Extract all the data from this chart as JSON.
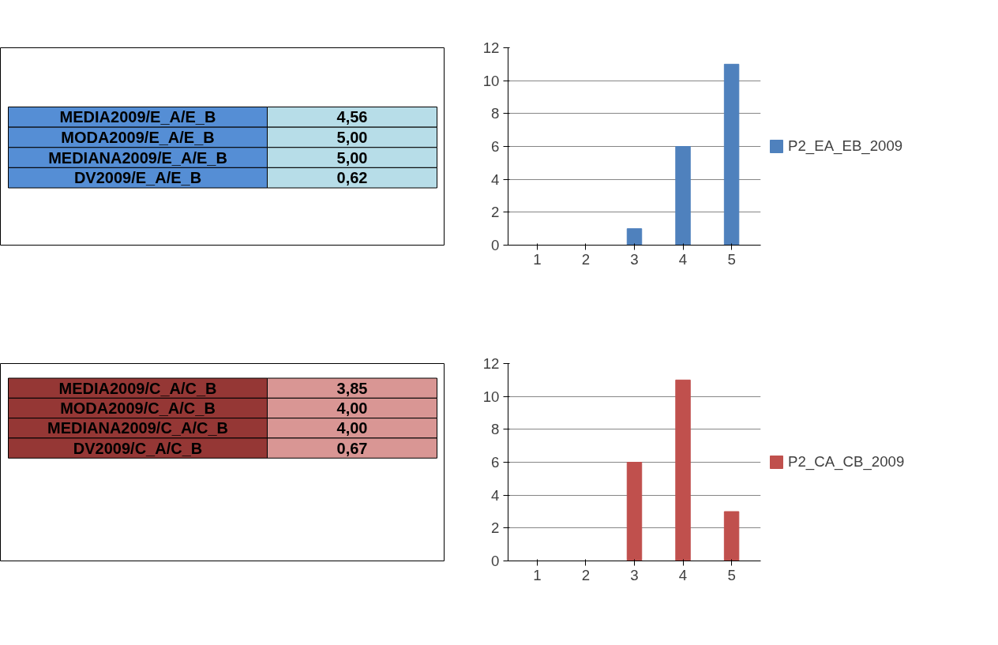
{
  "chart_data": [
    {
      "type": "other",
      "annotations": [
        "MEDIA2009/E_A/E_B",
        "4,56",
        "MODA2009/E_A/E_B",
        "5,00",
        "MEDIANA2009/E_A/E_B",
        "5,00",
        "DV2009/E_A/E_B",
        "0,62"
      ],
      "colors": [
        "#558ed5",
        "#b7dde8",
        "#558ed5",
        "#b7dde8",
        "#558ed5",
        "#b7dde8",
        "#558ed5",
        "#b7dde8"
      ]
    },
    {
      "type": "bar",
      "categories": [
        "1",
        "2",
        "3",
        "4",
        "5"
      ],
      "series": [
        {
          "name": "P2_EA_EB_2009",
          "color": "#4f81bd",
          "values": [
            0,
            0,
            1,
            6,
            11
          ]
        }
      ],
      "ylim": [
        0,
        12
      ],
      "yticks": [
        0,
        2,
        4,
        6,
        8,
        10,
        12
      ],
      "grid": "y",
      "legend": "right"
    },
    {
      "type": "other",
      "annotations": [
        "MEDIA2009/C_A/C_B",
        "3,85",
        "MODA2009/C_A/C_B",
        "4,00",
        "MEDIANA2009/C_A/C_B",
        "4,00",
        "DV2009/C_A/C_B",
        "0,67"
      ],
      "colors": [
        "#953735",
        "#d99694",
        "#953735",
        "#d99694",
        "#953735",
        "#d99694",
        "#953735",
        "#d99694"
      ]
    },
    {
      "type": "bar",
      "categories": [
        "1",
        "2",
        "3",
        "4",
        "5"
      ],
      "series": [
        {
          "name": "P2_CA_CB_2009",
          "color": "#c0504d",
          "values": [
            0,
            0,
            6,
            11,
            3
          ]
        }
      ],
      "ylim": [
        0,
        12
      ],
      "yticks": [
        0,
        2,
        4,
        6,
        8,
        10,
        12
      ],
      "grid": "y",
      "legend": "right"
    }
  ]
}
